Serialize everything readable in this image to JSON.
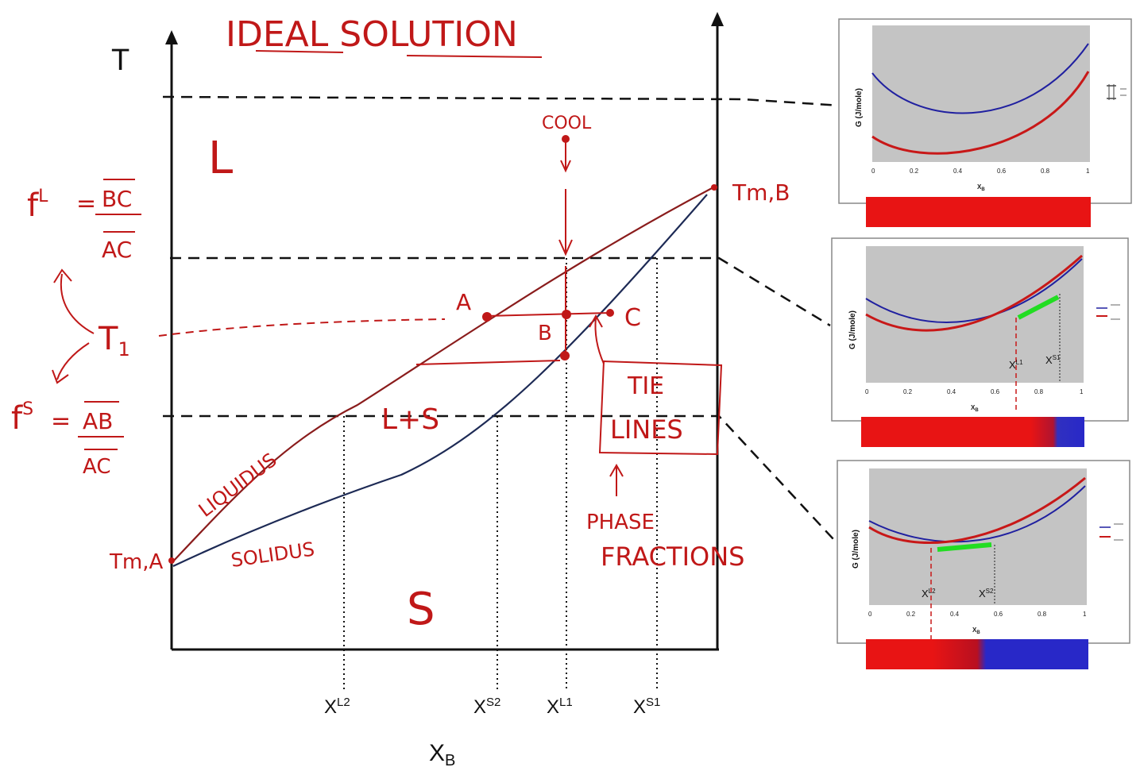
{
  "title": "IDEAL SOLUTION",
  "axes": {
    "y_label": "T",
    "x_label": "X",
    "x_label_sub": "B"
  },
  "regions": {
    "liquid": "L",
    "two_phase": "L+S",
    "solid": "S"
  },
  "curves": {
    "liquidus": "LIQUIDUS",
    "solidus": "SOLIDUS"
  },
  "melting_points": {
    "a": "Tm,A",
    "b": "Tm,B"
  },
  "temperature": "T",
  "temperature_sub": "1",
  "cool": "COOL",
  "points": {
    "a": "A",
    "b": "B",
    "c": "C"
  },
  "lever_rule": {
    "fl_lhs": "f",
    "fl_sup": "L",
    "fl_eq": "=",
    "fl_num": "BC",
    "fl_den": "AC",
    "fs_lhs": "f",
    "fs_sup": "S",
    "fs_eq": "=",
    "fs_num": "AB",
    "fs_den": "AC"
  },
  "annotations": {
    "tie_lines_1": "TIE",
    "tie_lines_2": "LINES",
    "phase_fractions_1": "PHASE",
    "phase_fractions_2": "FRACTIONS"
  },
  "compositions": [
    {
      "base": "X",
      "sup": "L2"
    },
    {
      "base": "X",
      "sup": "S2"
    },
    {
      "base": "X",
      "sup": "L1"
    },
    {
      "base": "X",
      "sup": "S1"
    }
  ],
  "insets": {
    "ylabel": "G (J/mole)",
    "xlabel": "X",
    "xlabel_sub": "B",
    "ticks": [
      "0",
      "0.2",
      "0.4",
      "0.6",
      "0.8",
      "1"
    ],
    "mid_marks": [
      {
        "base": "X",
        "sup": "L1"
      },
      {
        "base": "X",
        "sup": "S1"
      }
    ],
    "low_marks": [
      {
        "base": "X",
        "sup": "L2"
      },
      {
        "base": "X",
        "sup": "S2"
      }
    ]
  },
  "colors": {
    "pen_red": "#c01818",
    "axis": "#111111",
    "solidus": "#1d2a55",
    "liquidus": "#8a1c1c",
    "inset_bg": "#c4c4c4",
    "liquid_bar": "#e81414",
    "solid_bar": "#2828c8",
    "tangent": "#22dd22"
  }
}
